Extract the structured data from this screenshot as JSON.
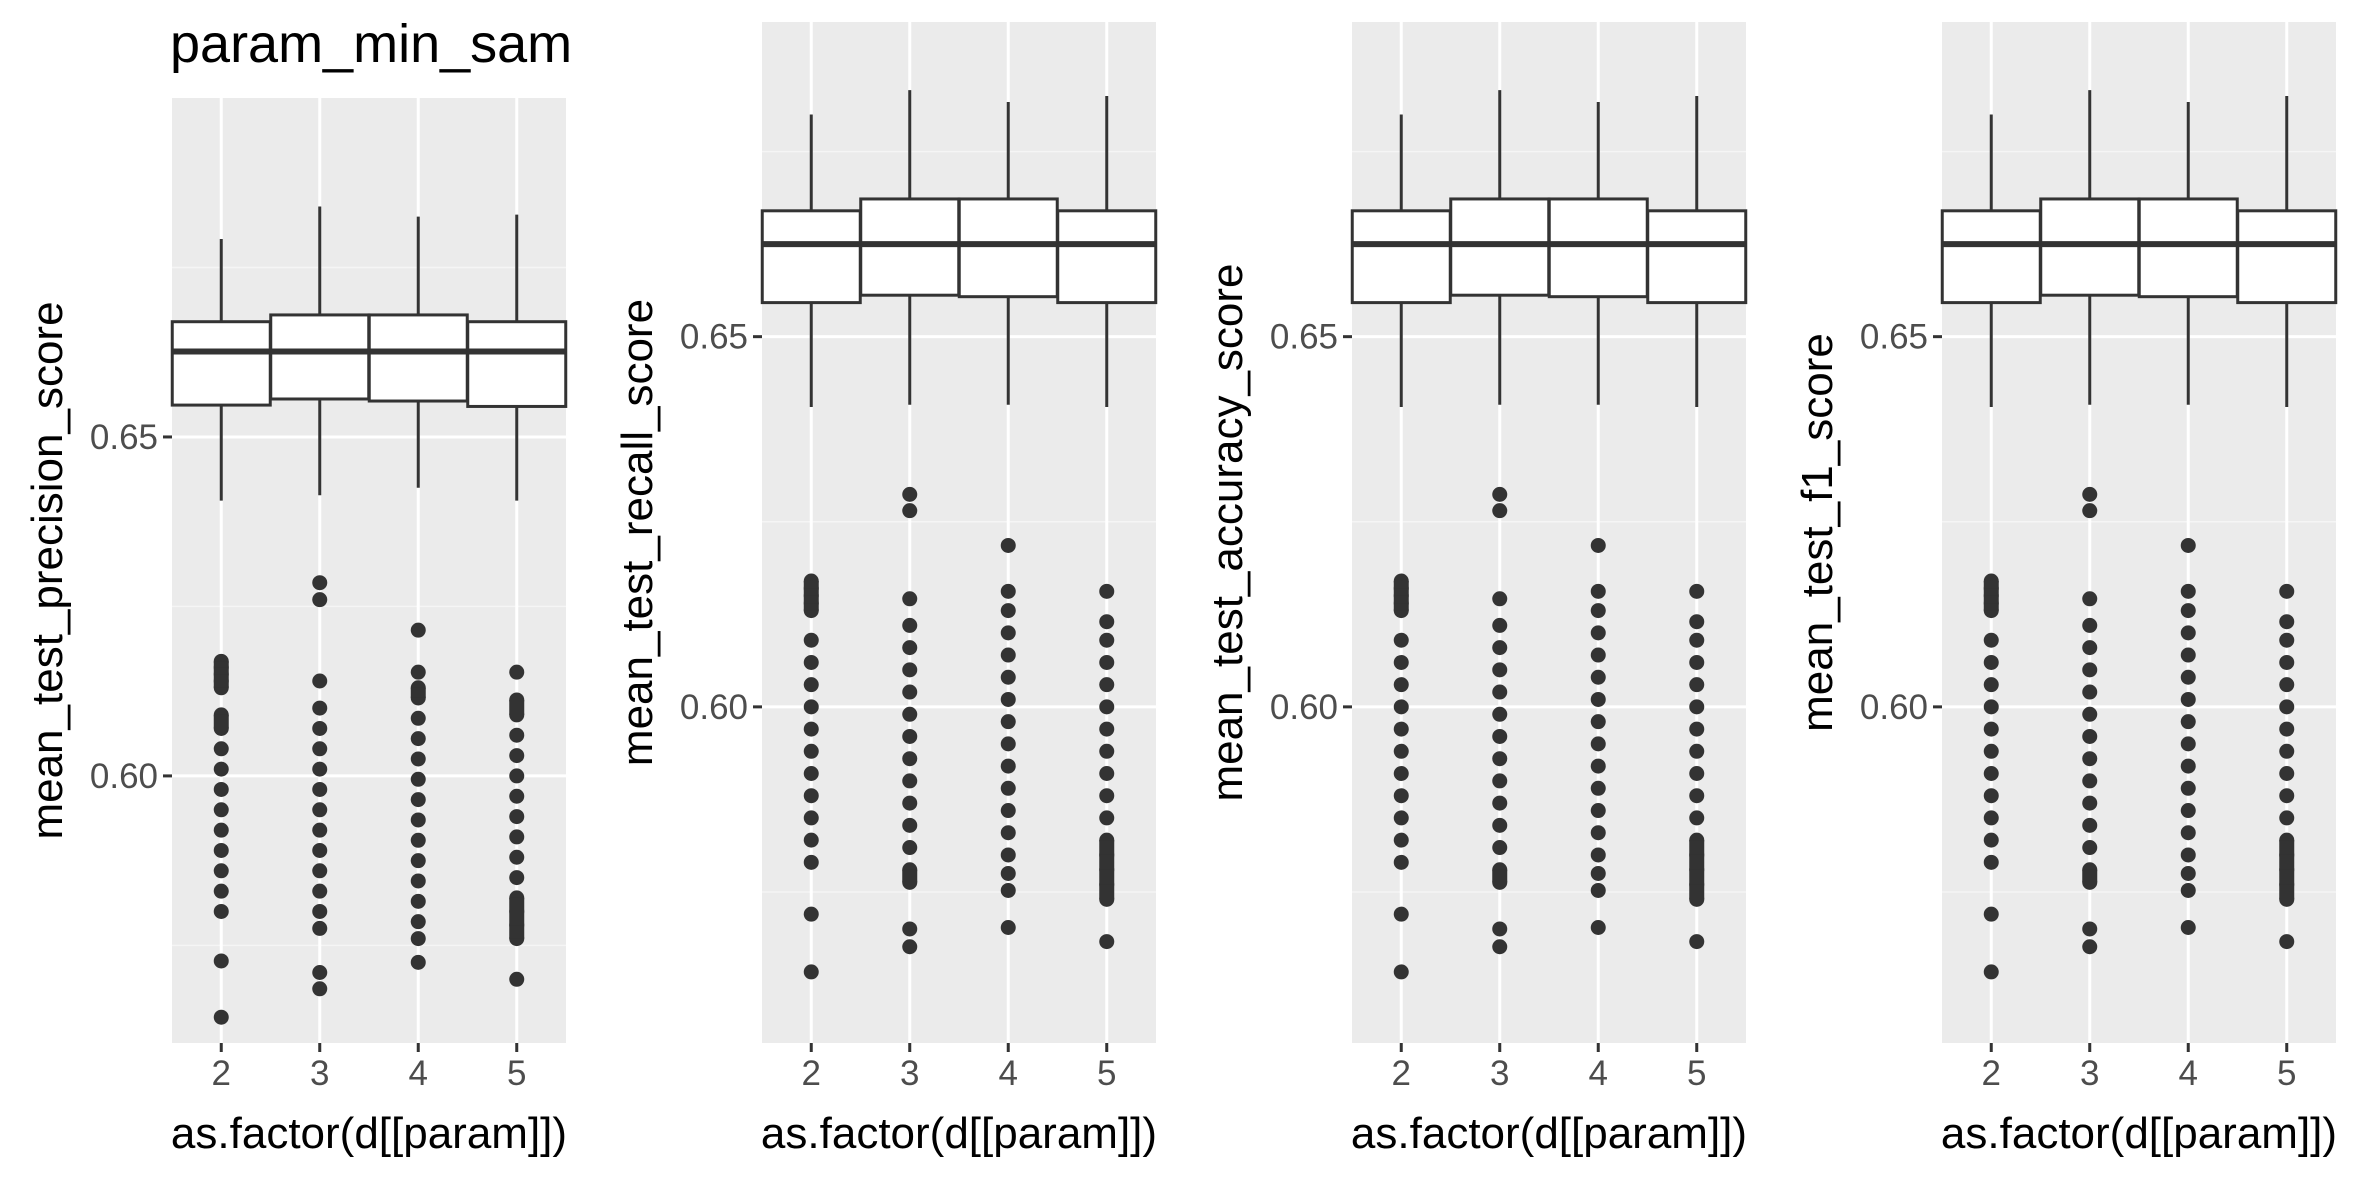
{
  "figure": {
    "title": "param_min_sam",
    "panel_background": "#ebebeb",
    "major_grid_color": "#ffffff",
    "minor_grid_color": "#f5f5f5",
    "box_fill": "#ffffff",
    "line_color": "#333333",
    "tick_label_color": "#4d4d4d"
  },
  "chart_data": [
    {
      "type": "box",
      "title": "param_min_sam",
      "xlabel": "as.factor(d[[param]])",
      "ylabel": "mean_test_precision_score",
      "categories": [
        "2",
        "3",
        "4",
        "5"
      ],
      "ylim": [
        0.5606,
        0.7
      ],
      "yticks": [
        0.6,
        0.65
      ],
      "ytick_labels": [
        "0.60",
        "0.65"
      ],
      "grid": true,
      "boxes": [
        {
          "category": "2",
          "whisker_low": 0.6406,
          "q1": 0.6547,
          "median": 0.6626,
          "q3": 0.667,
          "whisker_high": 0.6792,
          "outliers": [
            0.6169,
            0.616,
            0.615,
            0.614,
            0.613,
            0.609,
            0.607,
            0.604,
            0.601,
            0.598,
            0.595,
            0.592,
            0.589,
            0.586,
            0.583,
            0.58,
            0.5727,
            0.5644
          ]
        },
        {
          "category": "3",
          "whisker_low": 0.6414,
          "q1": 0.6556,
          "median": 0.6626,
          "q3": 0.668,
          "whisker_high": 0.684,
          "outliers": [
            0.6285,
            0.626,
            0.614,
            0.61,
            0.607,
            0.604,
            0.601,
            0.598,
            0.595,
            0.592,
            0.589,
            0.586,
            0.583,
            0.58,
            0.5775,
            0.571,
            0.5686
          ]
        },
        {
          "category": "4",
          "whisker_low": 0.6425,
          "q1": 0.6553,
          "median": 0.6626,
          "q3": 0.668,
          "whisker_high": 0.6825,
          "outliers": [
            0.6215,
            0.6153,
            0.613,
            0.6115,
            0.6085,
            0.6055,
            0.6025,
            0.5995,
            0.5965,
            0.5935,
            0.5905,
            0.5875,
            0.5845,
            0.5815,
            0.5785,
            0.576,
            0.5725
          ]
        },
        {
          "category": "5",
          "whisker_low": 0.6406,
          "q1": 0.6545,
          "median": 0.6626,
          "q3": 0.667,
          "whisker_high": 0.6828,
          "outliers": [
            0.6153,
            0.6112,
            0.609,
            0.606,
            0.603,
            0.6,
            0.597,
            0.594,
            0.591,
            0.588,
            0.585,
            0.582,
            0.58,
            0.578,
            0.576,
            0.57
          ]
        }
      ]
    },
    {
      "type": "box",
      "xlabel": "as.factor(d[[param]])",
      "ylabel": "mean_test_recall_score",
      "categories": [
        "2",
        "3",
        "4",
        "5"
      ],
      "ylim": [
        0.5546,
        0.6925
      ],
      "yticks": [
        0.6,
        0.65
      ],
      "ytick_labels": [
        "0.60",
        "0.65"
      ],
      "grid": true,
      "boxes": [
        {
          "category": "2",
          "whisker_low": 0.6405,
          "q1": 0.6546,
          "median": 0.6625,
          "q3": 0.667,
          "whisker_high": 0.68,
          "outliers": [
            0.617,
            0.616,
            0.615,
            0.614,
            0.613,
            0.609,
            0.606,
            0.603,
            0.6,
            0.597,
            0.594,
            0.591,
            0.588,
            0.585,
            0.582,
            0.579,
            0.572,
            0.5642
          ]
        },
        {
          "category": "3",
          "whisker_low": 0.6408,
          "q1": 0.6556,
          "median": 0.6625,
          "q3": 0.6686,
          "whisker_high": 0.6833,
          "outliers": [
            0.6287,
            0.6265,
            0.6146,
            0.611,
            0.608,
            0.605,
            0.602,
            0.599,
            0.596,
            0.593,
            0.59,
            0.587,
            0.584,
            0.581,
            0.578,
            0.5763,
            0.57,
            0.5676
          ]
        },
        {
          "category": "4",
          "whisker_low": 0.6408,
          "q1": 0.6554,
          "median": 0.6625,
          "q3": 0.6686,
          "whisker_high": 0.6817,
          "outliers": [
            0.6218,
            0.6156,
            0.613,
            0.61,
            0.607,
            0.604,
            0.601,
            0.598,
            0.595,
            0.592,
            0.589,
            0.586,
            0.583,
            0.58,
            0.5775,
            0.5752,
            0.5702
          ]
        },
        {
          "category": "5",
          "whisker_low": 0.6405,
          "q1": 0.6546,
          "median": 0.6625,
          "q3": 0.667,
          "whisker_high": 0.6825,
          "outliers": [
            0.6156,
            0.6115,
            0.609,
            0.606,
            0.603,
            0.6,
            0.597,
            0.594,
            0.591,
            0.588,
            0.585,
            0.582,
            0.58,
            0.578,
            0.576,
            0.574,
            0.5683
          ]
        }
      ]
    },
    {
      "type": "box",
      "xlabel": "as.factor(d[[param]])",
      "ylabel": "mean_test_accuracy_score",
      "categories": [
        "2",
        "3",
        "4",
        "5"
      ],
      "ylim": [
        0.5546,
        0.6925
      ],
      "yticks": [
        0.6,
        0.65
      ],
      "ytick_labels": [
        "0.60",
        "0.65"
      ],
      "grid": true,
      "boxes": [
        {
          "category": "2",
          "whisker_low": 0.6405,
          "q1": 0.6546,
          "median": 0.6625,
          "q3": 0.667,
          "whisker_high": 0.68,
          "outliers": [
            0.617,
            0.616,
            0.615,
            0.614,
            0.613,
            0.609,
            0.606,
            0.603,
            0.6,
            0.597,
            0.594,
            0.591,
            0.588,
            0.585,
            0.582,
            0.579,
            0.572,
            0.5642
          ]
        },
        {
          "category": "3",
          "whisker_low": 0.6408,
          "q1": 0.6556,
          "median": 0.6625,
          "q3": 0.6686,
          "whisker_high": 0.6833,
          "outliers": [
            0.6287,
            0.6265,
            0.6146,
            0.611,
            0.608,
            0.605,
            0.602,
            0.599,
            0.596,
            0.593,
            0.59,
            0.587,
            0.584,
            0.581,
            0.578,
            0.5763,
            0.57,
            0.5676
          ]
        },
        {
          "category": "4",
          "whisker_low": 0.6408,
          "q1": 0.6554,
          "median": 0.6625,
          "q3": 0.6686,
          "whisker_high": 0.6817,
          "outliers": [
            0.6218,
            0.6156,
            0.613,
            0.61,
            0.607,
            0.604,
            0.601,
            0.598,
            0.595,
            0.592,
            0.589,
            0.586,
            0.583,
            0.58,
            0.5775,
            0.5752,
            0.5702
          ]
        },
        {
          "category": "5",
          "whisker_low": 0.6405,
          "q1": 0.6546,
          "median": 0.6625,
          "q3": 0.667,
          "whisker_high": 0.6825,
          "outliers": [
            0.6156,
            0.6115,
            0.609,
            0.606,
            0.603,
            0.6,
            0.597,
            0.594,
            0.591,
            0.588,
            0.585,
            0.582,
            0.58,
            0.578,
            0.576,
            0.574,
            0.5683
          ]
        }
      ]
    },
    {
      "type": "box",
      "xlabel": "as.factor(d[[param]])",
      "ylabel": "mean_test_f1_score",
      "categories": [
        "2",
        "3",
        "4",
        "5"
      ],
      "ylim": [
        0.5546,
        0.6925
      ],
      "yticks": [
        0.6,
        0.65
      ],
      "ytick_labels": [
        "0.60",
        "0.65"
      ],
      "grid": true,
      "boxes": [
        {
          "category": "2",
          "whisker_low": 0.6405,
          "q1": 0.6546,
          "median": 0.6625,
          "q3": 0.667,
          "whisker_high": 0.68,
          "outliers": [
            0.617,
            0.616,
            0.615,
            0.614,
            0.613,
            0.609,
            0.606,
            0.603,
            0.6,
            0.597,
            0.594,
            0.591,
            0.588,
            0.585,
            0.582,
            0.579,
            0.572,
            0.5642
          ]
        },
        {
          "category": "3",
          "whisker_low": 0.6408,
          "q1": 0.6556,
          "median": 0.6625,
          "q3": 0.6686,
          "whisker_high": 0.6833,
          "outliers": [
            0.6287,
            0.6265,
            0.6146,
            0.611,
            0.608,
            0.605,
            0.602,
            0.599,
            0.596,
            0.593,
            0.59,
            0.587,
            0.584,
            0.581,
            0.578,
            0.5763,
            0.57,
            0.5676
          ]
        },
        {
          "category": "4",
          "whisker_low": 0.6408,
          "q1": 0.6554,
          "median": 0.6625,
          "q3": 0.6686,
          "whisker_high": 0.6817,
          "outliers": [
            0.6218,
            0.6156,
            0.613,
            0.61,
            0.607,
            0.604,
            0.601,
            0.598,
            0.595,
            0.592,
            0.589,
            0.586,
            0.583,
            0.58,
            0.5775,
            0.5752,
            0.5702
          ]
        },
        {
          "category": "5",
          "whisker_low": 0.6405,
          "q1": 0.6546,
          "median": 0.6625,
          "q3": 0.667,
          "whisker_high": 0.6825,
          "outliers": [
            0.6156,
            0.6115,
            0.609,
            0.606,
            0.603,
            0.6,
            0.597,
            0.594,
            0.591,
            0.588,
            0.585,
            0.582,
            0.58,
            0.578,
            0.576,
            0.574,
            0.5683
          ]
        }
      ]
    }
  ]
}
